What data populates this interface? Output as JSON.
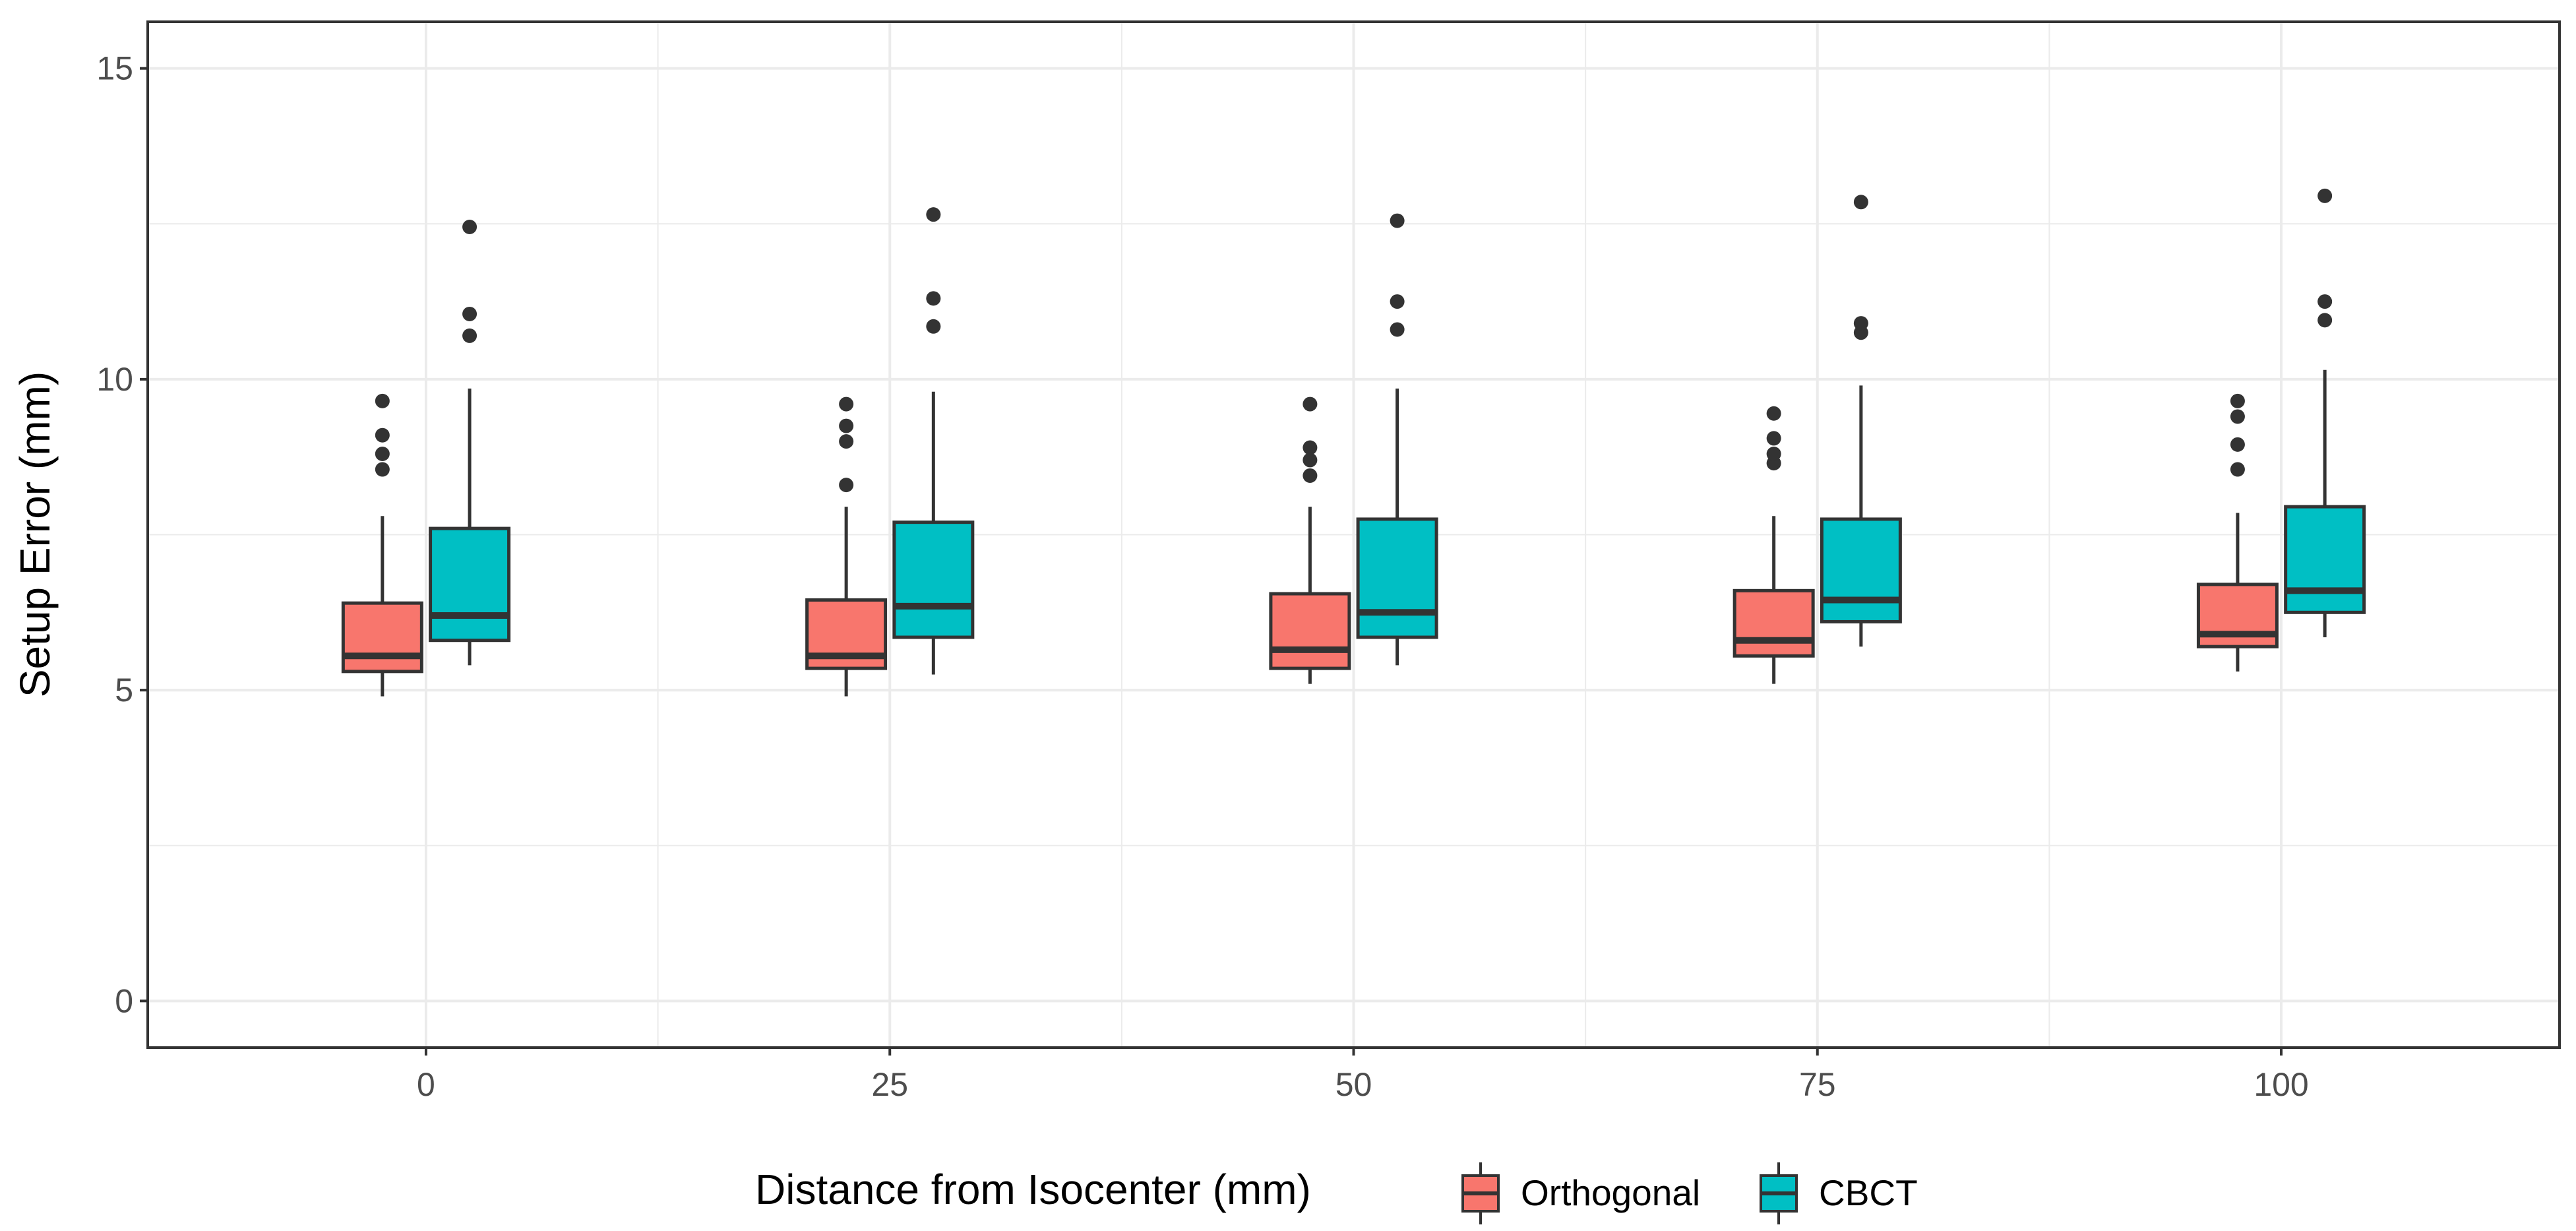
{
  "chart_data": {
    "type": "box",
    "title": "",
    "xlabel": "Distance from Isocenter (mm)",
    "ylabel": "Setup Error (mm)",
    "xlim": [
      -15,
      115
    ],
    "ylim": [
      -0.75,
      15.75
    ],
    "x_ticks": [
      0,
      25,
      50,
      75,
      100
    ],
    "y_ticks": [
      0,
      5,
      10,
      15
    ],
    "grid": true,
    "legend_position": "bottom",
    "categories": [
      0,
      25,
      50,
      75,
      100
    ],
    "series": [
      {
        "name": "Orthogonal",
        "color": "#F8766D",
        "boxes": [
          {
            "x": 0,
            "whisker_low": 4.9,
            "q1": 5.3,
            "median": 5.55,
            "q3": 6.4,
            "whisker_high": 7.8,
            "outliers": [
              8.55,
              8.8,
              9.1,
              9.65
            ]
          },
          {
            "x": 25,
            "whisker_low": 4.9,
            "q1": 5.35,
            "median": 5.55,
            "q3": 6.45,
            "whisker_high": 7.95,
            "outliers": [
              8.3,
              9.0,
              9.25,
              9.6
            ]
          },
          {
            "x": 50,
            "whisker_low": 5.1,
            "q1": 5.35,
            "median": 5.65,
            "q3": 6.55,
            "whisker_high": 7.95,
            "outliers": [
              8.45,
              8.7,
              8.9,
              9.6
            ]
          },
          {
            "x": 75,
            "whisker_low": 5.1,
            "q1": 5.55,
            "median": 5.8,
            "q3": 6.6,
            "whisker_high": 7.8,
            "outliers": [
              8.65,
              8.8,
              9.05,
              9.45
            ]
          },
          {
            "x": 100,
            "whisker_low": 5.3,
            "q1": 5.7,
            "median": 5.9,
            "q3": 6.7,
            "whisker_high": 7.85,
            "outliers": [
              8.55,
              8.95,
              9.4,
              9.65
            ]
          }
        ]
      },
      {
        "name": "CBCT",
        "color": "#00BFC4",
        "boxes": [
          {
            "x": 0,
            "whisker_low": 5.4,
            "q1": 5.8,
            "median": 6.2,
            "q3": 7.6,
            "whisker_high": 9.85,
            "outliers": [
              10.7,
              11.05,
              12.45
            ]
          },
          {
            "x": 25,
            "whisker_low": 5.25,
            "q1": 5.85,
            "median": 6.35,
            "q3": 7.7,
            "whisker_high": 9.8,
            "outliers": [
              10.85,
              11.3,
              12.65
            ]
          },
          {
            "x": 50,
            "whisker_low": 5.4,
            "q1": 5.85,
            "median": 6.25,
            "q3": 7.75,
            "whisker_high": 9.85,
            "outliers": [
              10.8,
              11.25,
              12.55
            ]
          },
          {
            "x": 75,
            "whisker_low": 5.7,
            "q1": 6.1,
            "median": 6.45,
            "q3": 7.75,
            "whisker_high": 9.9,
            "outliers": [
              10.75,
              10.9,
              12.85
            ]
          },
          {
            "x": 100,
            "whisker_low": 5.85,
            "q1": 6.25,
            "median": 6.6,
            "q3": 7.95,
            "whisker_high": 10.15,
            "outliers": [
              10.95,
              11.25,
              12.95
            ]
          }
        ]
      }
    ]
  }
}
